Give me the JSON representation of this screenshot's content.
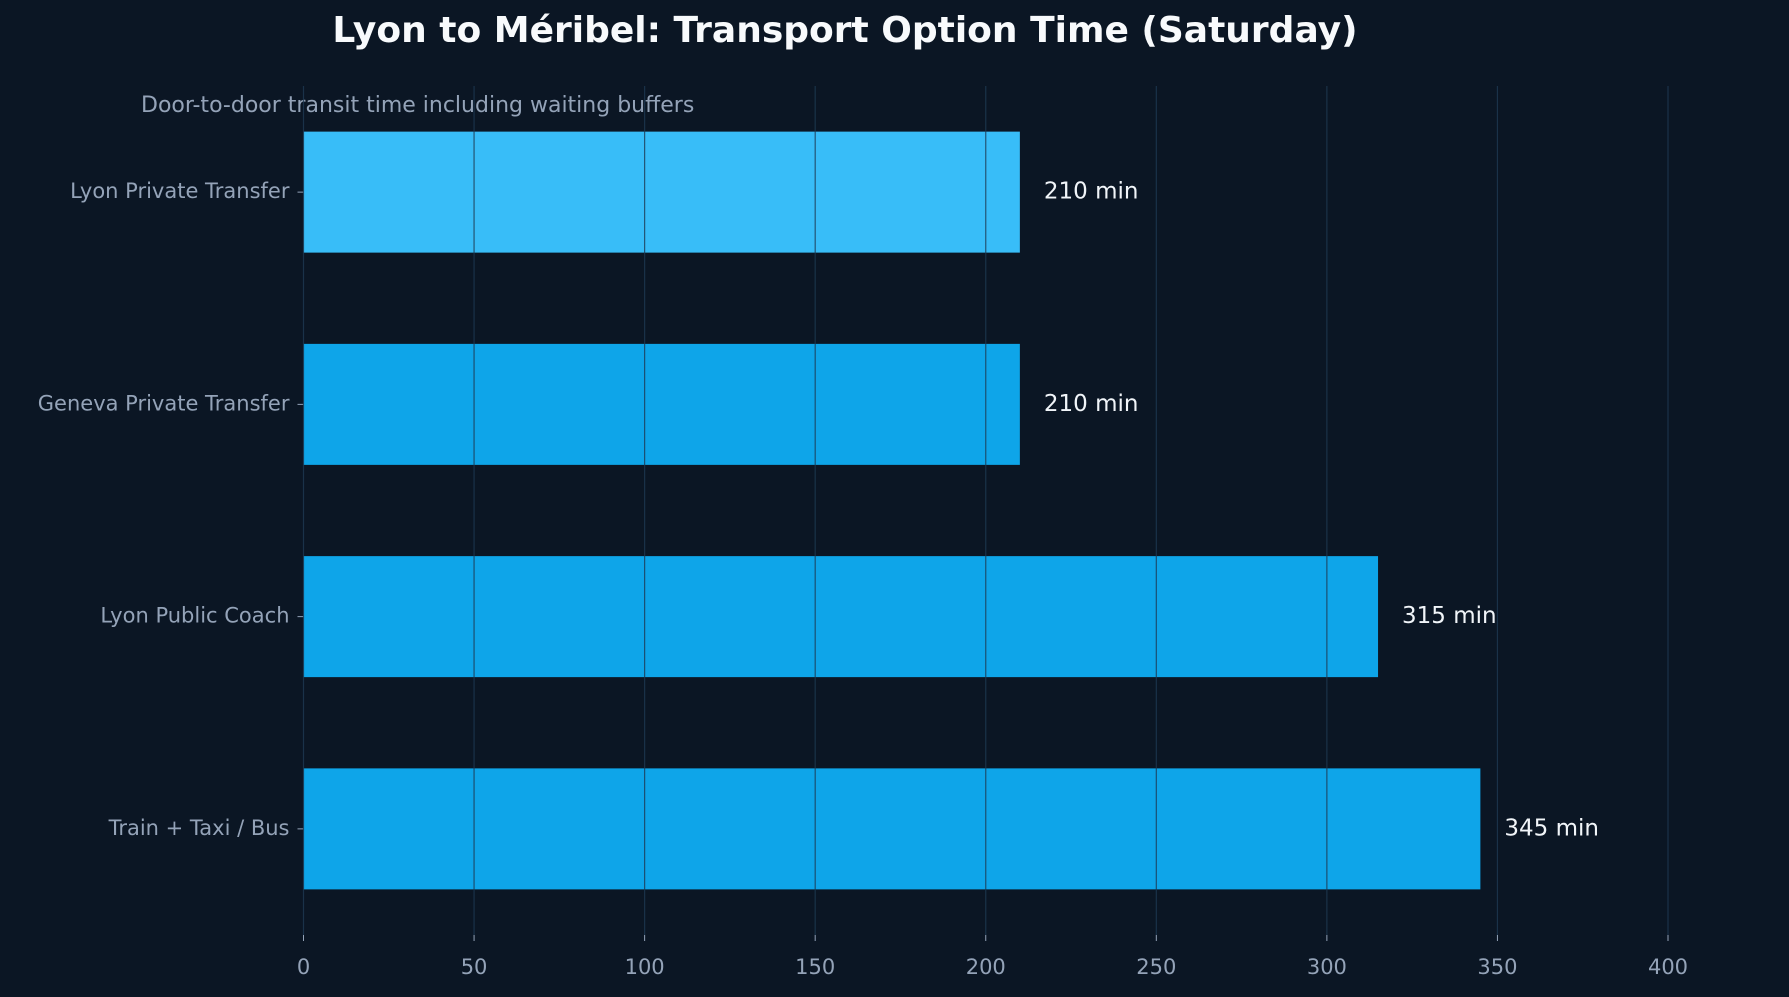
{
  "chart_data": {
    "type": "bar",
    "orientation": "horizontal",
    "title": "Lyon to Méribel: Transport Option Time (Saturday)",
    "subtitle": "Door-to-door transit time including waiting buffers",
    "categories": [
      "Lyon Private Transfer",
      "Geneva Private Transfer",
      "Lyon Public Coach",
      "Train + Taxi / Bus"
    ],
    "values": [
      210,
      210,
      315,
      345
    ],
    "value_labels": [
      "210 min",
      "210 min",
      "315 min",
      "345 min"
    ],
    "colors": [
      "#38bdf8",
      "#0ea5e9",
      "#0ea5e9",
      "#0ea5e9"
    ],
    "xlim": [
      0,
      400
    ],
    "xticks": [
      0,
      50,
      100,
      150,
      200,
      250,
      300,
      350,
      400
    ],
    "grid": true
  }
}
